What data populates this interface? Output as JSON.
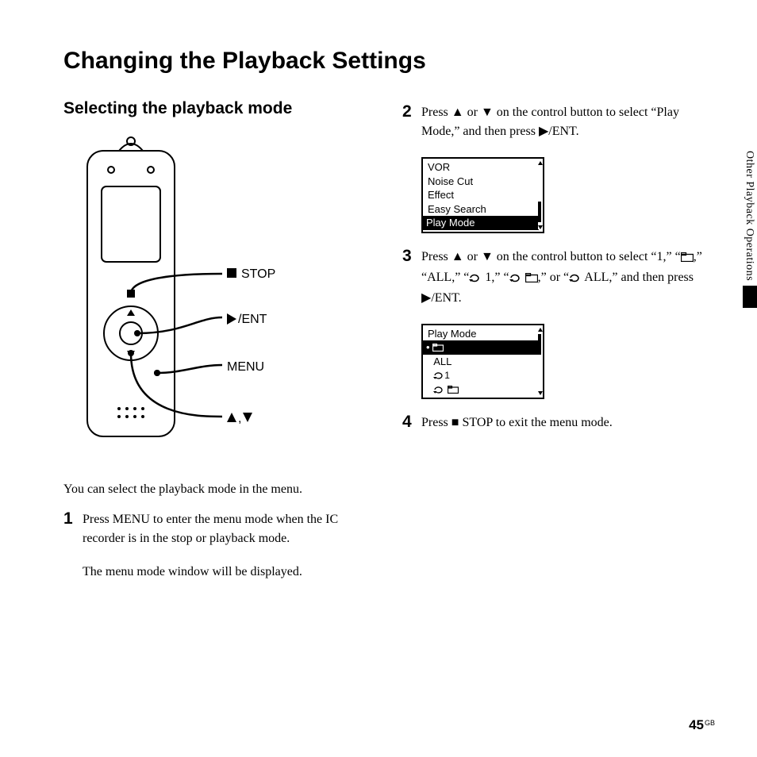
{
  "page": {
    "title": "Changing the Playback Settings",
    "section_title": "Selecting the playback mode",
    "side_tab": "Other Playback Operations",
    "page_number": "45",
    "page_region": "GB"
  },
  "device_labels": {
    "stop": "STOP",
    "ent": "/ENT",
    "menu": "MENU",
    "arrows": ","
  },
  "intro": "You can select the playback mode in the menu.",
  "steps": {
    "s1": {
      "num": "1",
      "text": "Press MENU to enter the menu mode when the IC recorder is in the stop or playback mode.",
      "text2": "The menu mode window will be displayed."
    },
    "s2": {
      "num": "2",
      "prefix": "Press ",
      "mid": " or ",
      "mid2": " on the control button to select “Play Mode,” and then press ",
      "suffix": "/ENT."
    },
    "s3": {
      "num": "3",
      "prefix": "Press ",
      "mid": " or ",
      "mid2": " on the control button to select “1,” “",
      "mid3": ",” “ALL,” “",
      "mid4": " 1,” “",
      "mid5": " ",
      "mid6": ",” or “",
      "mid7": " ALL,” and then press ",
      "suffix": "/ENT."
    },
    "s4": {
      "num": "4",
      "prefix": "Press ",
      "suffix": " STOP to exit the menu mode."
    }
  },
  "menu1": {
    "items": [
      "VOR",
      "Noise Cut",
      "Effect",
      "Easy Search",
      "Play Mode"
    ],
    "selected_index": 4,
    "thumb_top_pct": 60,
    "thumb_height_pct": 30
  },
  "menu2": {
    "title": "Play Mode",
    "items_display": [
      "folder",
      "ALL",
      "repeat1",
      "repeatfolder"
    ],
    "selected_index": 0,
    "thumb_top_pct": 10,
    "thumb_height_pct": 30
  },
  "colors": {
    "text": "#000000",
    "bg": "#ffffff"
  }
}
